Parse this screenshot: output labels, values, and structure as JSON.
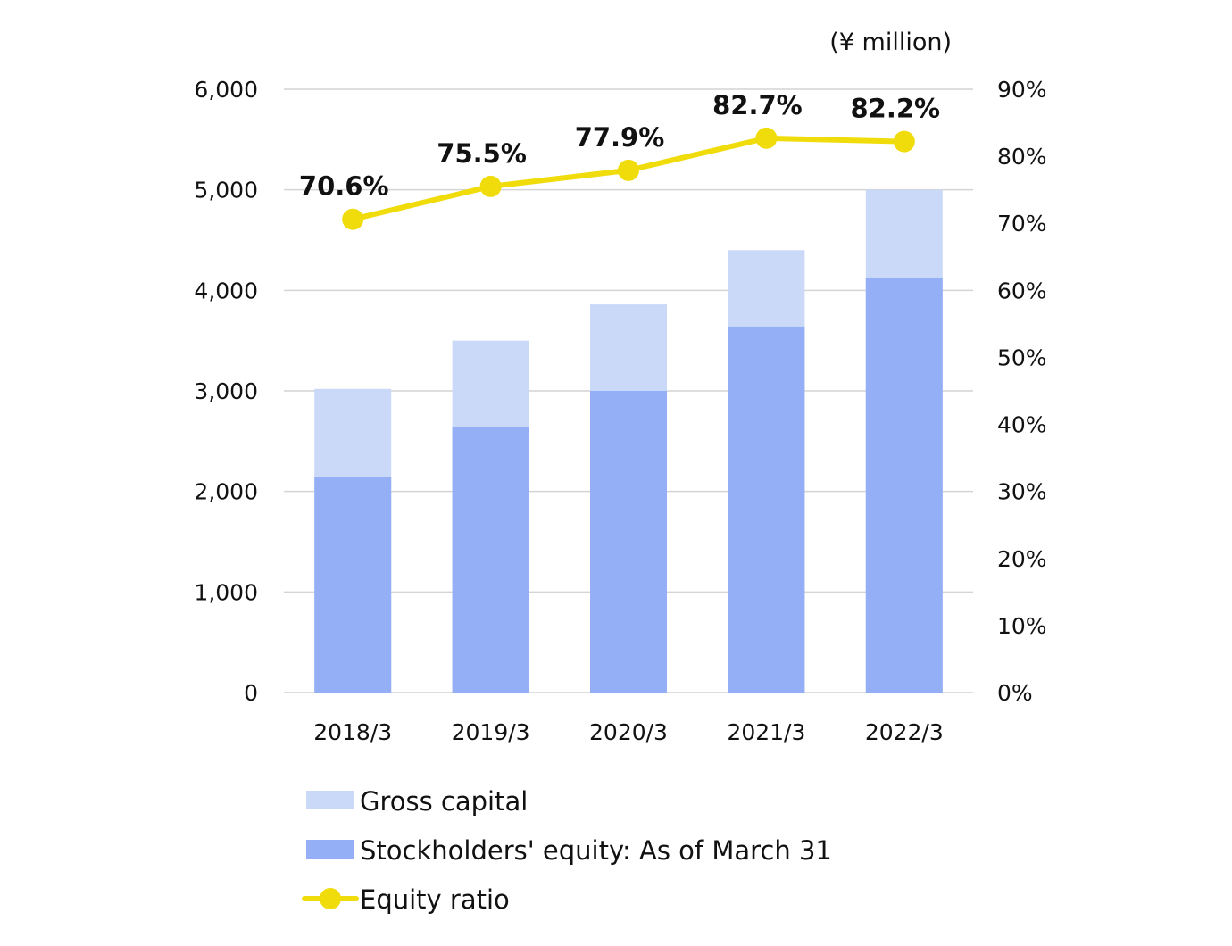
{
  "chart_data": {
    "type": "bar",
    "unit_label": "(¥ million)",
    "categories": [
      "2018/3",
      "2019/3",
      "2020/3",
      "2021/3",
      "2022/3"
    ],
    "series": [
      {
        "name": "Gross capital",
        "type": "bar",
        "axis": "left",
        "color": "#cbd9f8",
        "values": [
          3020,
          3500,
          3860,
          4400,
          5000
        ]
      },
      {
        "name": "Stockholders' equity: As of March 31",
        "type": "bar",
        "axis": "left",
        "color": "#94aff5",
        "values": [
          2140,
          2640,
          3000,
          3640,
          4120
        ]
      },
      {
        "name": "Equity ratio",
        "type": "line",
        "axis": "right",
        "color": "#f0dc0a",
        "values": [
          70.6,
          75.5,
          77.9,
          82.7,
          82.2
        ],
        "labels": [
          "70.6%",
          "75.5%",
          "77.9%",
          "82.7%",
          "82.2%"
        ]
      }
    ],
    "left_axis": {
      "ylim": [
        0,
        6000
      ],
      "ticks": [
        "0",
        "1,000",
        "2,000",
        "3,000",
        "4,000",
        "5,000",
        "6,000"
      ]
    },
    "right_axis": {
      "ylim": [
        0,
        90
      ],
      "ticks": [
        "0%",
        "10%",
        "20%",
        "30%",
        "40%",
        "50%",
        "60%",
        "70%",
        "80%",
        "90%"
      ]
    },
    "grid": true,
    "legend_position": "bottom"
  }
}
